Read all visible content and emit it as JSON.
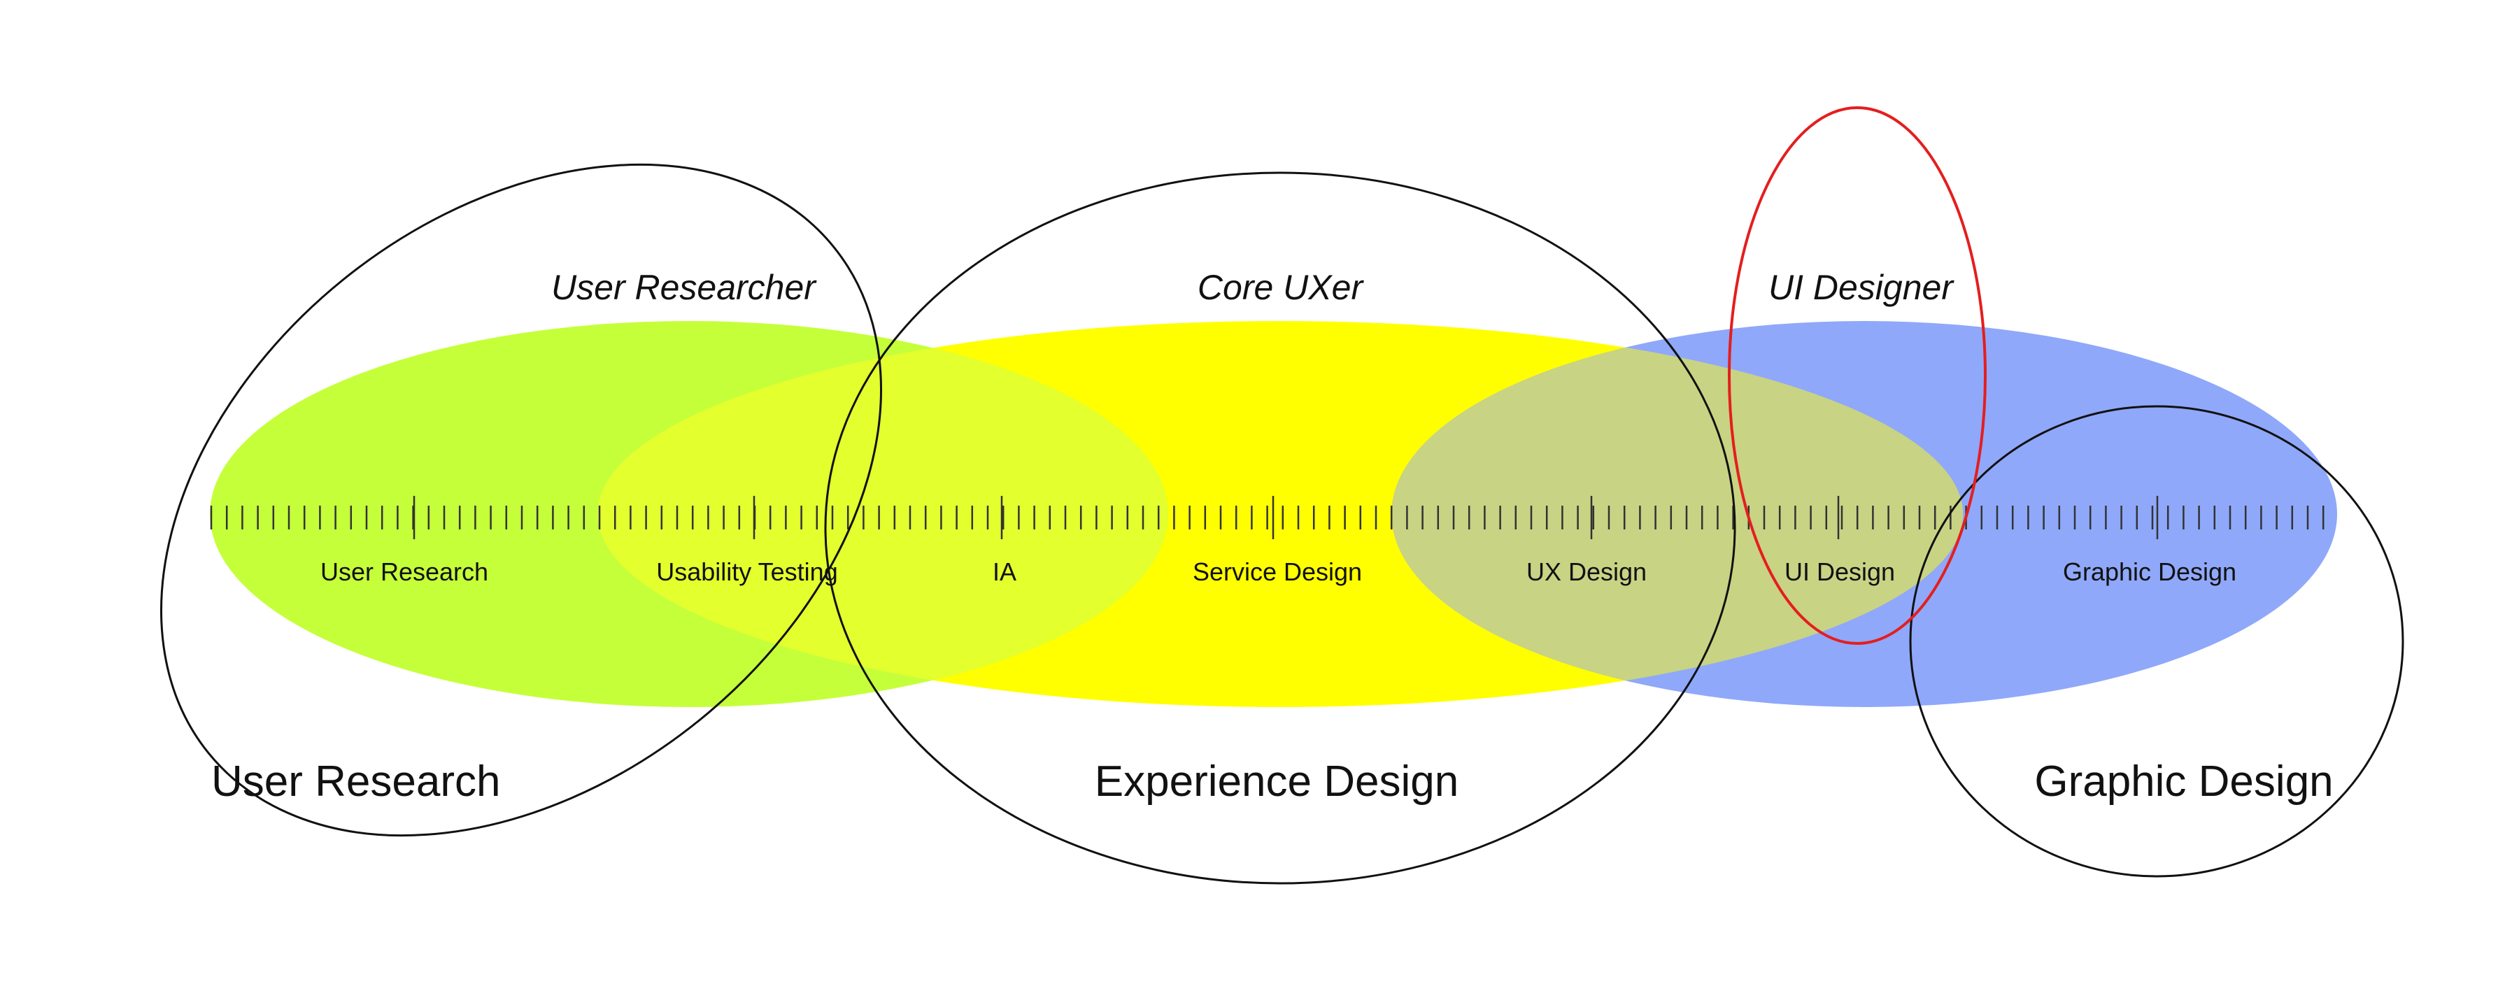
{
  "diagram": {
    "roles": {
      "user_researcher": "User Researcher",
      "core_uxer": "Core UXer",
      "ui_designer": "UI Designer"
    },
    "scale_labels": {
      "user_research": "User Research",
      "usability_testing": "Usability Testing",
      "ia": "IA",
      "service_design": "Service Design",
      "ux_design": "UX Design",
      "ui_design": "UI Design",
      "graphic_design": "Graphic Design"
    },
    "fields": {
      "user_research": "User Research",
      "experience_design": "Experience Design",
      "graphic_design": "Graphic Design"
    },
    "colors": {
      "user_research_fill": "#c5ff3a",
      "experience_design_fill": "#ffff00",
      "graphic_design_fill": "#8fa8fa",
      "overlap_fill": "#e3ff2e",
      "ux_ui_overlap_fill": "#c8d384",
      "outline": "#111111",
      "ui_designer_outline": "#e41e1e"
    }
  }
}
